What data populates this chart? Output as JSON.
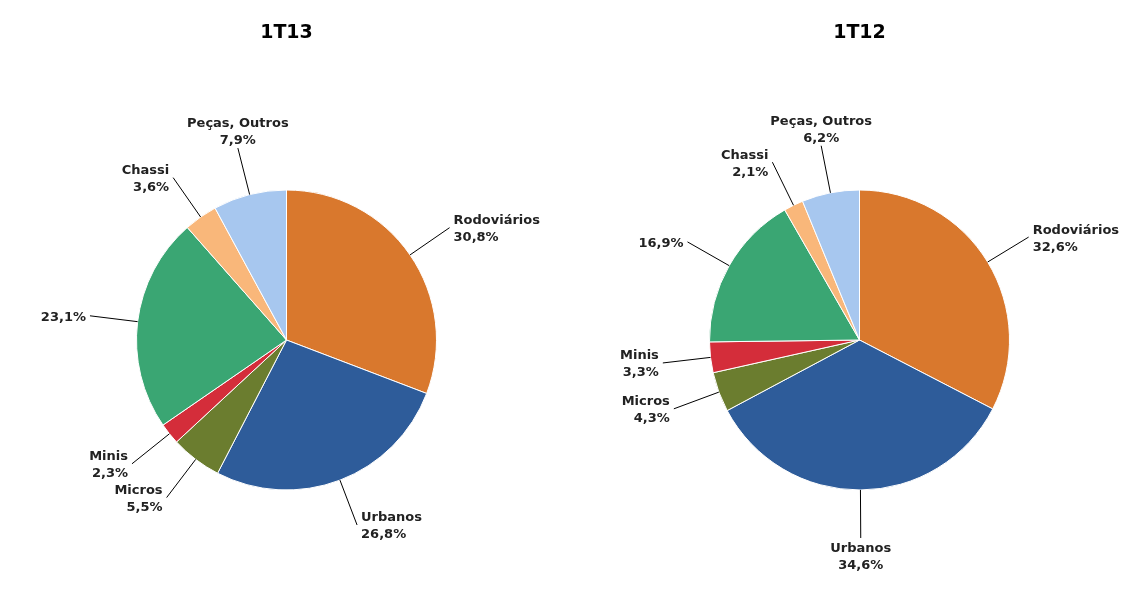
{
  "chart_data": [
    {
      "type": "pie",
      "title": "1T13",
      "categories": [
        "Rodoviários",
        "Urbanos",
        "Micros",
        "Minis",
        null,
        "Chassi",
        "Peças, Outros"
      ],
      "values": [
        30.8,
        26.8,
        5.5,
        2.3,
        23.1,
        3.6,
        7.9
      ],
      "colors": [
        "#d9782d",
        "#2e5c9a",
        "#6b7d2f",
        "#d42d3a",
        "#3aa673",
        "#f9b77a",
        "#a7c7ef"
      ],
      "value_labels": [
        "30,8%",
        "26,8%",
        "5,5%",
        "2,3%",
        "23,1%",
        "3,6%",
        "7,9%"
      ]
    },
    {
      "type": "pie",
      "title": "1T12",
      "categories": [
        "Rodoviários",
        "Urbanos",
        "Micros",
        "Minis",
        null,
        "Chassi",
        "Peças, Outros"
      ],
      "values": [
        32.6,
        34.6,
        4.3,
        3.3,
        16.9,
        2.1,
        6.2
      ],
      "colors": [
        "#d9782d",
        "#2e5c9a",
        "#6b7d2f",
        "#d42d3a",
        "#3aa673",
        "#f9b77a",
        "#a7c7ef"
      ],
      "value_labels": [
        "32,6%",
        "34,6%",
        "4,3%",
        "3,3%",
        "16,9%",
        "2,1%",
        "6,2%"
      ]
    }
  ]
}
